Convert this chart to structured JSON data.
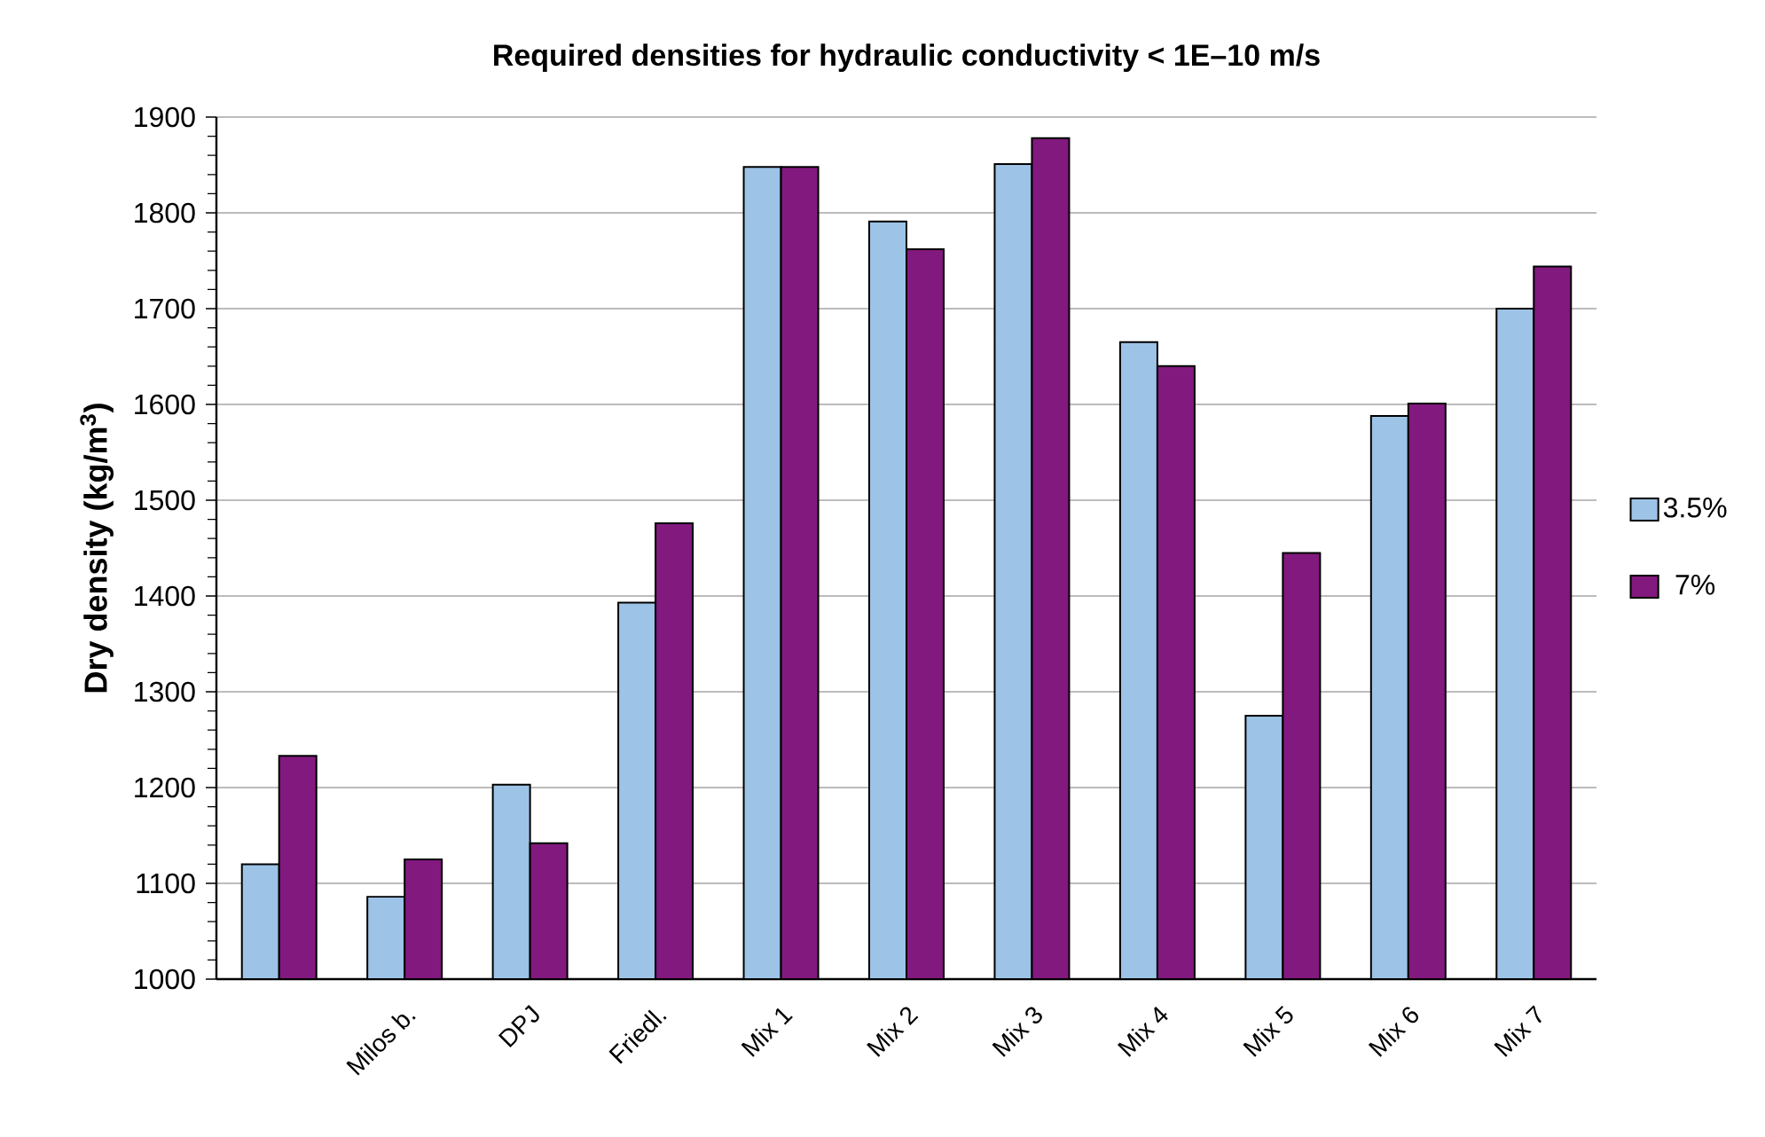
{
  "chart_data": {
    "type": "bar",
    "title": "Required densities for hydraulic conductivity < 1E–10 m/s",
    "ylabel": "Dry density (kg/m$^{3}$)",
    "categories": [
      null,
      "Milos b.",
      "DPJ",
      "Friedl.",
      "Mix 1",
      "Mix 2",
      "Mix 3",
      "Mix 4",
      "Mix 5",
      "Mix 6",
      "Mix 7"
    ],
    "series": [
      {
        "name": "3.5%",
        "color": "#9dc3e6",
        "values": [
          1120,
          1086,
          1203,
          1393,
          1848,
          1791,
          1851,
          1665,
          1275,
          1588,
          1700
        ]
      },
      {
        "name": "7%",
        "color": "#82197e",
        "values": [
          1233,
          1125,
          1142,
          1476,
          1848,
          1762,
          1878,
          1640,
          1445,
          1601,
          1744
        ]
      }
    ],
    "ylim": [
      1000,
      1900
    ],
    "yticks": [
      1000,
      1100,
      1200,
      1300,
      1400,
      1500,
      1600,
      1700,
      1800,
      1900
    ],
    "grid": "y",
    "legend": "right"
  }
}
